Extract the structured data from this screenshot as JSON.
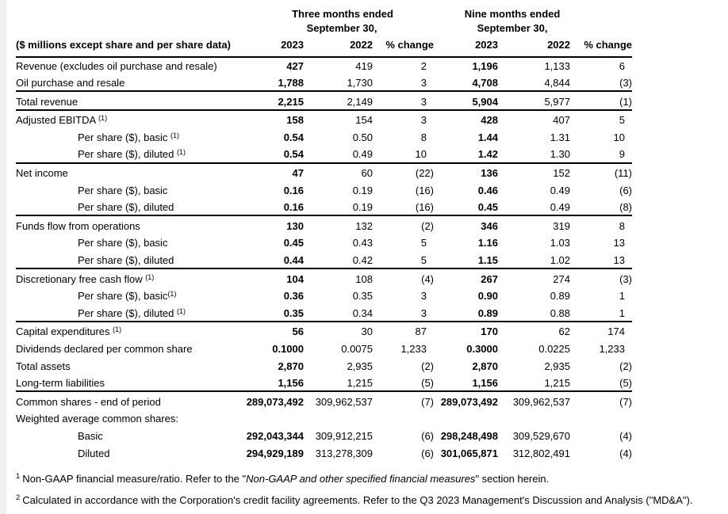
{
  "page": {
    "background": "#ffffff",
    "edge_strip_color": "#f3f1ef",
    "text_color": "#000000"
  },
  "table": {
    "group_headers": [
      {
        "line1": "Three months ended",
        "line2": "September 30,"
      },
      {
        "line1": "Nine months ended",
        "line2": "September 30,"
      }
    ],
    "header": {
      "label": "($ millions except share and per share data)",
      "columns": [
        "2023",
        "2022",
        "% change",
        "2023",
        "2022",
        "% change"
      ]
    },
    "rows": [
      {
        "label": "Revenue (excludes oil purchase and resale)",
        "sup": "",
        "sup_gap": false,
        "indent": false,
        "values": [
          "427",
          "419",
          "2",
          "1,196",
          "1,133",
          "6"
        ],
        "rule_after": false
      },
      {
        "label": "Oil purchase and resale",
        "sup": "",
        "sup_gap": false,
        "indent": false,
        "values": [
          "1,788",
          "1,730",
          "3",
          "4,708",
          "4,844",
          "(3)"
        ],
        "rule_after": true
      },
      {
        "label": "Total revenue",
        "sup": "",
        "sup_gap": false,
        "indent": false,
        "values": [
          "2,215",
          "2,149",
          "3",
          "5,904",
          "5,977",
          "(1)"
        ],
        "rule_after": true
      },
      {
        "label": "Adjusted EBITDA",
        "sup": "(1)",
        "sup_gap": true,
        "indent": false,
        "values": [
          "158",
          "154",
          "3",
          "428",
          "407",
          "5"
        ],
        "rule_after": false
      },
      {
        "label": "Per share ($), basic",
        "sup": "(1)",
        "sup_gap": true,
        "indent": true,
        "values": [
          "0.54",
          "0.50",
          "8",
          "1.44",
          "1.31",
          "10"
        ],
        "rule_after": false
      },
      {
        "label": "Per share ($), diluted",
        "sup": "(1)",
        "sup_gap": true,
        "indent": true,
        "values": [
          "0.54",
          "0.49",
          "10",
          "1.42",
          "1.30",
          "9"
        ],
        "rule_after": true
      },
      {
        "label": "Net income",
        "sup": "",
        "sup_gap": false,
        "indent": false,
        "values": [
          "47",
          "60",
          "(22)",
          "136",
          "152",
          "(11)"
        ],
        "rule_after": false
      },
      {
        "label": "Per share ($), basic",
        "sup": "",
        "sup_gap": false,
        "indent": true,
        "values": [
          "0.16",
          "0.19",
          "(16)",
          "0.46",
          "0.49",
          "(6)"
        ],
        "rule_after": false
      },
      {
        "label": "Per share ($), diluted",
        "sup": "",
        "sup_gap": false,
        "indent": true,
        "values": [
          "0.16",
          "0.19",
          "(16)",
          "0.45",
          "0.49",
          "(8)"
        ],
        "rule_after": true
      },
      {
        "label": "Funds flow from operations",
        "sup": "",
        "sup_gap": false,
        "indent": false,
        "values": [
          "130",
          "132",
          "(2)",
          "346",
          "319",
          "8"
        ],
        "rule_after": false
      },
      {
        "label": "Per share ($), basic",
        "sup": "",
        "sup_gap": false,
        "indent": true,
        "values": [
          "0.45",
          "0.43",
          "5",
          "1.16",
          "1.03",
          "13"
        ],
        "rule_after": false
      },
      {
        "label": "Per share ($), diluted",
        "sup": "",
        "sup_gap": false,
        "indent": true,
        "values": [
          "0.44",
          "0.42",
          "5",
          "1.15",
          "1.02",
          "13"
        ],
        "rule_after": true
      },
      {
        "label": "Discretionary free cash flow",
        "sup": "(1)",
        "sup_gap": true,
        "indent": false,
        "values": [
          "104",
          "108",
          "(4)",
          "267",
          "274",
          "(3)"
        ],
        "rule_after": false
      },
      {
        "label": "Per share ($), basic",
        "sup": "(1)",
        "sup_gap": false,
        "indent": true,
        "values": [
          "0.36",
          "0.35",
          "3",
          "0.90",
          "0.89",
          "1"
        ],
        "rule_after": false
      },
      {
        "label": "Per share ($), diluted",
        "sup": "(1)",
        "sup_gap": true,
        "indent": true,
        "values": [
          "0.35",
          "0.34",
          "3",
          "0.89",
          "0.88",
          "1"
        ],
        "rule_after": true
      },
      {
        "label": "Capital expenditures",
        "sup": "(1)",
        "sup_gap": true,
        "indent": false,
        "values": [
          "56",
          "30",
          "87",
          "170",
          "62",
          "174"
        ],
        "rule_after": false
      },
      {
        "label": "Dividends declared per common share",
        "sup": "",
        "sup_gap": false,
        "indent": false,
        "values": [
          "0.1000",
          "0.0075",
          "1,233",
          "0.3000",
          "0.0225",
          "1,233"
        ],
        "rule_after": false
      },
      {
        "label": "Total assets",
        "sup": "",
        "sup_gap": false,
        "indent": false,
        "values": [
          "2,870",
          "2,935",
          "(2)",
          "2,870",
          "2,935",
          "(2)"
        ],
        "rule_after": false
      },
      {
        "label": "Long-term liabilities",
        "sup": "",
        "sup_gap": false,
        "indent": false,
        "values": [
          "1,156",
          "1,215",
          "(5)",
          "1,156",
          "1,215",
          "(5)"
        ],
        "rule_after": true
      },
      {
        "label": "Common shares - end of period",
        "sup": "",
        "sup_gap": false,
        "indent": false,
        "values": [
          "289,073,492",
          "309,962,537",
          "(7)",
          "289,073,492",
          "309,962,537",
          "(7)"
        ],
        "rule_after": false
      },
      {
        "label": "Weighted average common shares:",
        "sup": "",
        "sup_gap": false,
        "indent": false,
        "values": [
          "",
          "",
          "",
          "",
          "",
          ""
        ],
        "rule_after": false
      },
      {
        "label": "Basic",
        "sup": "",
        "sup_gap": false,
        "indent": true,
        "values": [
          "292,043,344",
          "309,912,215",
          "(6)",
          "298,248,498",
          "309,529,670",
          "(4)"
        ],
        "rule_after": false
      },
      {
        "label": "Diluted",
        "sup": "",
        "sup_gap": false,
        "indent": true,
        "values": [
          "294,929,189",
          "313,278,309",
          "(6)",
          "301,065,871",
          "312,802,491",
          "(4)"
        ],
        "rule_after": false
      }
    ]
  },
  "footnotes": [
    {
      "marker": "1",
      "text_before": "Non-GAAP financial measure/ratio. Refer to the \"",
      "italic": "Non-GAAP and other specified financial measures",
      "text_after": "\" section herein."
    },
    {
      "marker": "2",
      "text_before": "Calculated in accordance with the Corporation's credit facility agreements. Refer to the Q3 2023 Management's Discussion and Analysis (\"MD&A\").",
      "italic": "",
      "text_after": ""
    }
  ]
}
